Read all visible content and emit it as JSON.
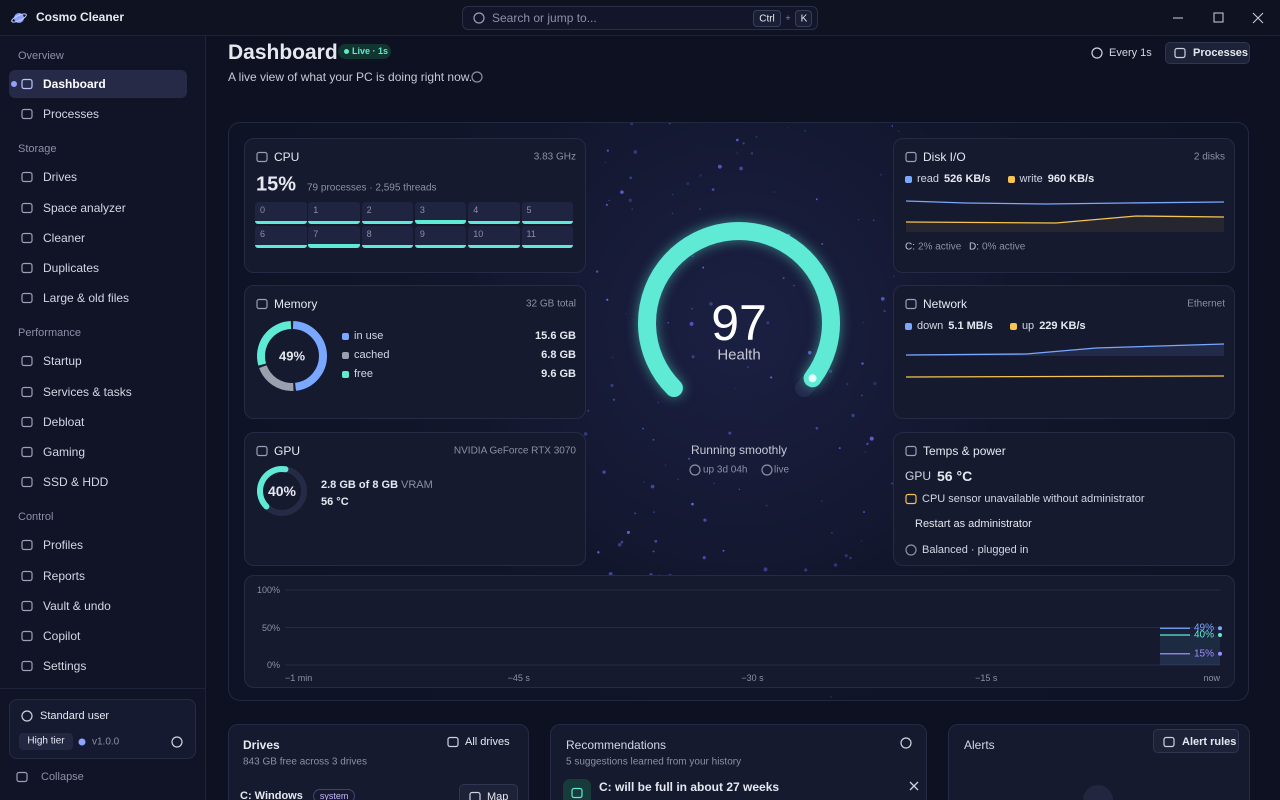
{
  "app": {
    "name": "Cosmo Cleaner",
    "search": "Search or jump to...",
    "kbd_ctrl": "Ctrl",
    "kbd_plus": "+",
    "kbd_k": "K"
  },
  "sidebar": {
    "sections": [
      {
        "title": "Overview",
        "items": [
          "Dashboard",
          "Processes"
        ]
      },
      {
        "title": "Storage",
        "items": [
          "Drives",
          "Space analyzer",
          "Cleaner",
          "Duplicates",
          "Large & old files"
        ]
      },
      {
        "title": "Performance",
        "items": [
          "Startup",
          "Services & tasks",
          "Debloat",
          "Gaming",
          "SSD & HDD"
        ]
      },
      {
        "title": "Control",
        "items": [
          "Profiles",
          "Reports",
          "Vault & undo",
          "Copilot",
          "Settings"
        ]
      }
    ],
    "user": "Standard user",
    "tier": "High tier",
    "version": "v1.0.0",
    "collapse": "Collapse"
  },
  "header": {
    "title": "Dashboard",
    "badge": "Live · 1s",
    "subtitle": "A live view of what your PC is doing right now.",
    "refresh": "Every 1s",
    "processes": "Processes"
  },
  "cpu": {
    "title": "CPU",
    "frequency": "3.83 GHz",
    "usage": "15%",
    "details": "79 processes · 2,595 threads",
    "cores": [
      "0",
      "1",
      "2",
      "3",
      "4",
      "5",
      "6",
      "7",
      "8",
      "9",
      "10",
      "11"
    ]
  },
  "memory": {
    "title": "Memory",
    "total": "32 GB total",
    "percent": "49%",
    "items": [
      {
        "name": "in use",
        "value": 15.6,
        "label": "15.6 GB",
        "color": "#7aa7ff"
      },
      {
        "name": "cached",
        "value": 6.8,
        "label": "6.8 GB",
        "color": "#9aa0ae"
      },
      {
        "name": "free",
        "value": 9.6,
        "label": "9.6 GB",
        "color": "#5eead4"
      }
    ]
  },
  "gpu": {
    "title": "GPU",
    "model": "NVIDIA GeForce RTX 3070",
    "usage": {
      "value": 40,
      "label": "40%"
    },
    "vram": "2.8 GB of 8 GB",
    "vram_unit": "VRAM",
    "temp": "56 °C"
  },
  "health": {
    "score": 97,
    "label": "Health",
    "status": "Running smoothly",
    "uptime": "up 3d 04h",
    "live": "live"
  },
  "disk": {
    "title": "Disk I/O",
    "disks": "2 disks",
    "read_label": "read",
    "read": "526 KB/s",
    "write_label": "write",
    "write": "960 KB/s",
    "drives": [
      {
        "name": "C:",
        "active": "2% active"
      },
      {
        "name": "D:",
        "active": "0% active"
      }
    ]
  },
  "network": {
    "title": "Network",
    "adapter": "Ethernet",
    "down_label": "down",
    "down": "5.1 MB/s",
    "up_label": "up",
    "up": "229 KB/s"
  },
  "temps": {
    "title": "Temps & power",
    "gpu_label": "GPU",
    "gpu_temp": "56 °C",
    "warning": "CPU sensor unavailable without administrator",
    "restart": "Restart as administrator",
    "power": "Balanced · plugged in"
  },
  "history": {
    "ylim": [
      0,
      100
    ],
    "yticks": [
      {
        "value": 100,
        "label": "100%"
      },
      {
        "value": 50,
        "label": "50%"
      },
      {
        "value": 0,
        "label": "0%"
      }
    ],
    "xticks": [
      "−1 min",
      "−45 s",
      "−30 s",
      "−15 s",
      "now"
    ],
    "series": [
      {
        "value": 49,
        "label": "49%",
        "color": "#7aa7ff"
      },
      {
        "value": 40,
        "label": "40%",
        "color": "#5eead4"
      },
      {
        "value": 15,
        "label": "15%",
        "color": "#a08cff"
      }
    ]
  },
  "drives": {
    "title": "Drives",
    "subtitle": "843 GB free across 3 drives",
    "all": "All drives",
    "first": "C: Windows",
    "tag": "system",
    "map": "Map"
  },
  "recommendations": {
    "title": "Recommendations",
    "subtitle": "5 suggestions learned from your history",
    "first": "C: will be full in about 27 weeks"
  },
  "alerts": {
    "title": "Alerts",
    "rules": "Alert rules"
  }
}
